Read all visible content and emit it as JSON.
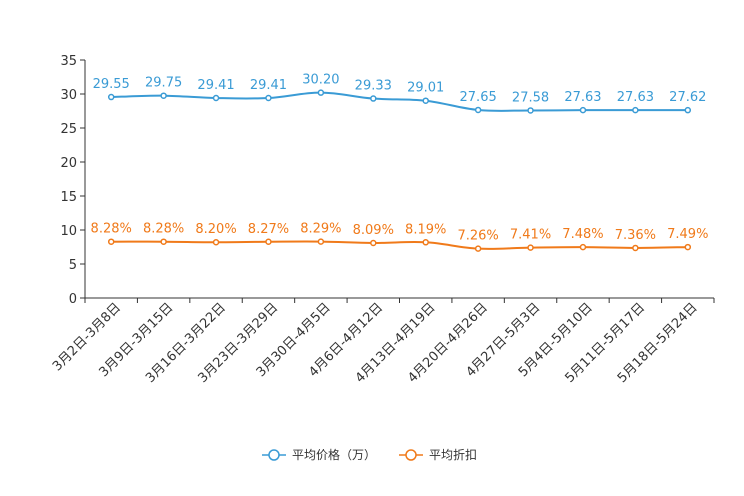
{
  "chart_data": {
    "type": "line",
    "title": "",
    "xlabel": "",
    "ylabel": "",
    "ylim": [
      0,
      35
    ],
    "yticks": [
      0,
      5,
      10,
      15,
      20,
      25,
      30,
      35
    ],
    "grid": false,
    "legend_position": "bottom-center",
    "categories": [
      "3月2日-3月8日",
      "3月9日-3月15日",
      "3月16日-3月22日",
      "3月23日-3月29日",
      "3月30日-4月5日",
      "4月6日-4月12日",
      "4月13日-4月19日",
      "4月20日-4月26日",
      "4月27日-5月3日",
      "5月4日-5月10日",
      "5月11日-5月17日",
      "5月18日-5月24日"
    ],
    "series": [
      {
        "name": "平均价格（万）",
        "color": "#3a9bd5",
        "values": [
          29.55,
          29.75,
          29.41,
          29.41,
          30.2,
          29.33,
          29.01,
          27.65,
          27.58,
          27.63,
          27.63,
          27.62
        ],
        "labels": [
          "29.55",
          "29.75",
          "29.41",
          "29.41",
          "30.20",
          "29.33",
          "29.01",
          "27.65",
          "27.58",
          "27.63",
          "27.63",
          "27.62"
        ]
      },
      {
        "name": "平均折扣",
        "color": "#f07a1a",
        "values": [
          8.28,
          8.28,
          8.2,
          8.27,
          8.29,
          8.09,
          8.19,
          7.26,
          7.41,
          7.48,
          7.36,
          7.49
        ],
        "labels": [
          "8.28%",
          "8.28%",
          "8.20%",
          "8.27%",
          "8.29%",
          "8.09%",
          "8.19%",
          "7.26%",
          "7.41%",
          "7.48%",
          "7.36%",
          "7.49%"
        ]
      }
    ]
  }
}
